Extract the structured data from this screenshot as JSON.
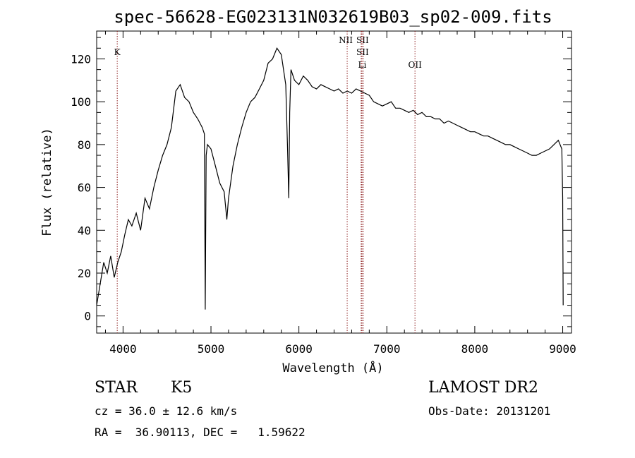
{
  "chart_data": {
    "type": "line",
    "title": "spec-56628-EG023131N032619B03_sp02-009.fits",
    "xlabel": "Wavelength (Å)",
    "ylabel": "Flux (relative)",
    "xlim": [
      3700,
      9100
    ],
    "ylim": [
      -8,
      133
    ],
    "x_ticks": [
      4000,
      5000,
      6000,
      7000,
      8000,
      9000
    ],
    "y_ticks": [
      0,
      20,
      40,
      60,
      80,
      100,
      120
    ],
    "grid": false,
    "line_color": "#000000",
    "marker_color": "#8b1a1a",
    "series": [
      {
        "x": [
          3700,
          3740,
          3780,
          3820,
          3860,
          3900,
          3940,
          3980,
          4020,
          4060,
          4100,
          4150,
          4200,
          4250,
          4300,
          4350,
          4400,
          4450,
          4500,
          4550,
          4600,
          4650,
          4700,
          4750,
          4800,
          4850,
          4900,
          4925,
          4935,
          4945,
          4960,
          5000,
          5050,
          5100,
          5150,
          5180,
          5200,
          5250,
          5300,
          5350,
          5400,
          5450,
          5500,
          5550,
          5600,
          5650,
          5700,
          5750,
          5800,
          5850,
          5870,
          5885,
          5895,
          5910,
          5950,
          6000,
          6050,
          6100,
          6150,
          6200,
          6250,
          6300,
          6350,
          6400,
          6450,
          6500,
          6550,
          6600,
          6650,
          6700,
          6750,
          6800,
          6850,
          6900,
          6950,
          7000,
          7050,
          7100,
          7150,
          7200,
          7250,
          7300,
          7350,
          7400,
          7450,
          7500,
          7550,
          7600,
          7650,
          7700,
          7750,
          7800,
          7850,
          7900,
          7950,
          8000,
          8050,
          8100,
          8150,
          8200,
          8250,
          8300,
          8350,
          8400,
          8450,
          8500,
          8550,
          8600,
          8650,
          8700,
          8750,
          8800,
          8850,
          8900,
          8950,
          8990,
          9000,
          9005
        ],
        "y": [
          5,
          15,
          25,
          20,
          28,
          18,
          25,
          30,
          38,
          45,
          42,
          48,
          40,
          55,
          50,
          60,
          68,
          75,
          80,
          88,
          105,
          108,
          102,
          100,
          95,
          92,
          88,
          85,
          3,
          75,
          80,
          78,
          70,
          62,
          58,
          45,
          55,
          70,
          80,
          88,
          95,
          100,
          102,
          106,
          110,
          118,
          120,
          125,
          122,
          108,
          80,
          55,
          95,
          115,
          110,
          108,
          112,
          110,
          107,
          106,
          108,
          107,
          106,
          105,
          106,
          104,
          105,
          104,
          106,
          105,
          104,
          103,
          100,
          99,
          98,
          99,
          100,
          97,
          97,
          96,
          95,
          96,
          94,
          95,
          93,
          93,
          92,
          92,
          90,
          91,
          90,
          89,
          88,
          87,
          86,
          86,
          85,
          84,
          84,
          83,
          82,
          81,
          80,
          80,
          79,
          78,
          77,
          76,
          75,
          75,
          76,
          77,
          78,
          80,
          82,
          78,
          55,
          5
        ]
      }
    ],
    "line_markers": [
      {
        "label": "K",
        "x": 3934
      },
      {
        "label": "NII",
        "x": 6549
      },
      {
        "label": "SII",
        "x": 6717
      },
      {
        "label": "SII",
        "x": 6731
      },
      {
        "label": "Li",
        "x": 6708
      },
      {
        "label": "OII",
        "x": 7320
      }
    ]
  },
  "info": {
    "class": "STAR",
    "subclass": "K5",
    "survey": "LAMOST DR2",
    "cz": "cz = 36.0 ± 12.6 km/s",
    "obs_date": "Obs-Date: 20131201",
    "radec": "RA =  36.90113, DEC =   1.59622"
  }
}
